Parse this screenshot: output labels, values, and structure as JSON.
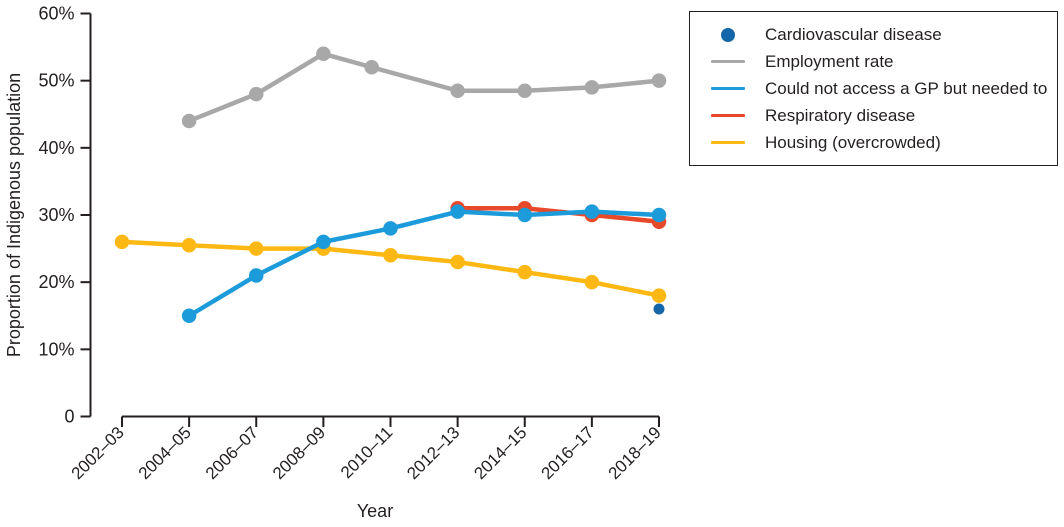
{
  "figure": {
    "background": "#ffffff",
    "axis_color": "#231f20",
    "text_color": "#231f20"
  },
  "chart_data": {
    "type": "line",
    "title": "",
    "xlabel": "Year",
    "ylabel": "Proportion of Indigenous population",
    "categories": [
      "2002–03",
      "2004–05",
      "2006–07",
      "2008–09",
      "2010–11",
      "2012–13",
      "2014–15",
      "2016–17",
      "2018–19"
    ],
    "ylim": [
      0,
      60
    ],
    "yticks": [
      0,
      10,
      20,
      30,
      40,
      50,
      60
    ],
    "ytick_labels": [
      "0",
      "10%",
      "20%",
      "30%",
      "40%",
      "50%",
      "60%"
    ],
    "grid": false,
    "legend_position": "outside-top-right",
    "series": [
      {
        "name": "Cardiovascular disease",
        "color": "#1565a9",
        "swatch": "dot",
        "line": false,
        "marker_radius": 5.5,
        "points": [
          {
            "x": 8,
            "y": 16
          }
        ]
      },
      {
        "name": "Employment rate",
        "color": "#a8a8a8",
        "swatch": "line",
        "line": true,
        "marker_radius": 7.25,
        "points": [
          {
            "x": 1,
            "y": 44
          },
          {
            "x": 2,
            "y": 48
          },
          {
            "x": 3,
            "y": 54
          },
          {
            "x": 3.72,
            "y": 52
          },
          {
            "x": 5,
            "y": 48.5
          },
          {
            "x": 6,
            "y": 48.5
          },
          {
            "x": 7,
            "y": 49
          },
          {
            "x": 8,
            "y": 50
          }
        ]
      },
      {
        "name": "Could not access a GP but needed to",
        "color": "#1c9bdb",
        "swatch": "line",
        "line": true,
        "marker_radius": 7.25,
        "points": [
          {
            "x": 1,
            "y": 15
          },
          {
            "x": 2,
            "y": 21
          },
          {
            "x": 3,
            "y": 26
          },
          {
            "x": 4,
            "y": 28
          },
          {
            "x": 5,
            "y": 30.5
          },
          {
            "x": 6,
            "y": 30
          },
          {
            "x": 7,
            "y": 30.5
          },
          {
            "x": 8,
            "y": 30
          }
        ]
      },
      {
        "name": "Respiratory disease",
        "color": "#e8492a",
        "swatch": "line",
        "line": true,
        "marker_radius": 7.25,
        "points": [
          {
            "x": 5,
            "y": 31
          },
          {
            "x": 6,
            "y": 31
          },
          {
            "x": 7,
            "y": 30
          },
          {
            "x": 8,
            "y": 29
          }
        ]
      },
      {
        "name": "Housing (overcrowded)",
        "color": "#fdb813",
        "swatch": "line",
        "line": true,
        "marker_radius": 7.25,
        "points": [
          {
            "x": 0,
            "y": 26
          },
          {
            "x": 1,
            "y": 25.5
          },
          {
            "x": 2,
            "y": 25
          },
          {
            "x": 3,
            "y": 25
          },
          {
            "x": 4,
            "y": 24
          },
          {
            "x": 5,
            "y": 23
          },
          {
            "x": 6,
            "y": 21.5
          },
          {
            "x": 7,
            "y": 20
          },
          {
            "x": 8,
            "y": 18
          }
        ]
      }
    ],
    "draw_order": [
      1,
      4,
      3,
      2,
      0
    ]
  }
}
